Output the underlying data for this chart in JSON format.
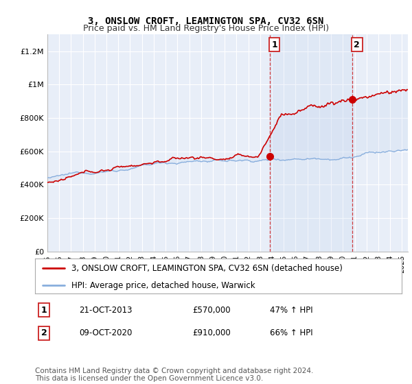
{
  "title": "3, ONSLOW CROFT, LEAMINGTON SPA, CV32 6SN",
  "subtitle": "Price paid vs. HM Land Registry's House Price Index (HPI)",
  "legend_line1": "3, ONSLOW CROFT, LEAMINGTON SPA, CV32 6SN (detached house)",
  "legend_line2": "HPI: Average price, detached house, Warwick",
  "annotation1_label": "1",
  "annotation1_date": "21-OCT-2013",
  "annotation1_price": "£570,000",
  "annotation1_hpi": "47% ↑ HPI",
  "annotation1_year": 2013.8,
  "annotation1_value": 570000,
  "annotation2_label": "2",
  "annotation2_date": "09-OCT-2020",
  "annotation2_price": "£910,000",
  "annotation2_hpi": "66% ↑ HPI",
  "annotation2_year": 2020.78,
  "annotation2_value": 910000,
  "copyright": "Contains HM Land Registry data © Crown copyright and database right 2024.\nThis data is licensed under the Open Government Licence v3.0.",
  "ylim": [
    0,
    1300000
  ],
  "yticks": [
    0,
    200000,
    400000,
    600000,
    800000,
    1000000,
    1200000
  ],
  "ytick_labels": [
    "£0",
    "£200K",
    "£400K",
    "£600K",
    "£800K",
    "£1M",
    "£1.2M"
  ],
  "xmin": 1995,
  "xmax": 2025.5,
  "plot_bg_color": "#e8eef8",
  "line_red": "#cc0000",
  "line_blue": "#88aedd",
  "shade_color": "#c8d8f0",
  "vline_color": "#cc0000",
  "grid_color": "#ffffff",
  "title_fontsize": 10,
  "subtitle_fontsize": 9,
  "tick_fontsize": 8,
  "legend_fontsize": 8.5,
  "annot_fontsize": 8.5,
  "copyright_fontsize": 7.5
}
